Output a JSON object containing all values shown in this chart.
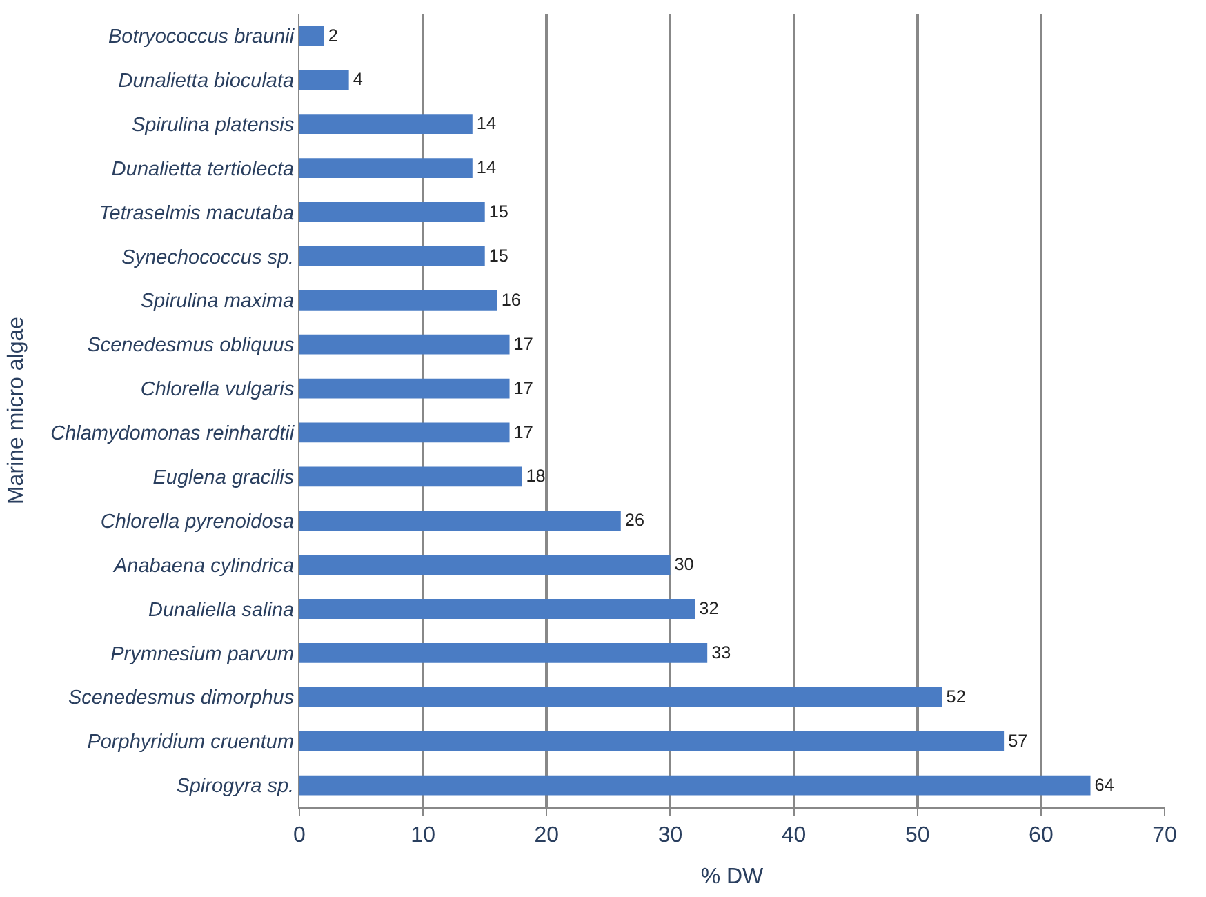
{
  "chart_data": {
    "type": "bar",
    "orientation": "horizontal",
    "xlabel": "% DW",
    "ylabel": "Marine micro algae",
    "categories": [
      "Botryococcus braunii",
      "Dunalietta bioculata",
      "Spirulina platensis",
      "Dunalietta tertiolecta",
      "Tetraselmis macutaba",
      "Synechococcus sp.",
      "Spirulina maxima",
      "Scenedesmus obliquus",
      "Chlorella vulgaris",
      "Chlamydomonas reinhardtii",
      "Euglena gracilis",
      "Chlorella pyrenoidosa",
      "Anabaena cylindrica",
      "Dunaliella salina",
      "Prymnesium parvum",
      "Scenedesmus dimorphus",
      "Porphyridium cruentum",
      "Spirogyra sp."
    ],
    "values": [
      2,
      4,
      14,
      14,
      15,
      15,
      16,
      17,
      17,
      17,
      18,
      26,
      30,
      32,
      33,
      52,
      57,
      64
    ],
    "color": "#4a7cc4",
    "data_labels": true,
    "xlim": [
      0,
      70
    ],
    "xticks": [
      0,
      10,
      20,
      30,
      40,
      50,
      60,
      70
    ],
    "grid": "x"
  }
}
